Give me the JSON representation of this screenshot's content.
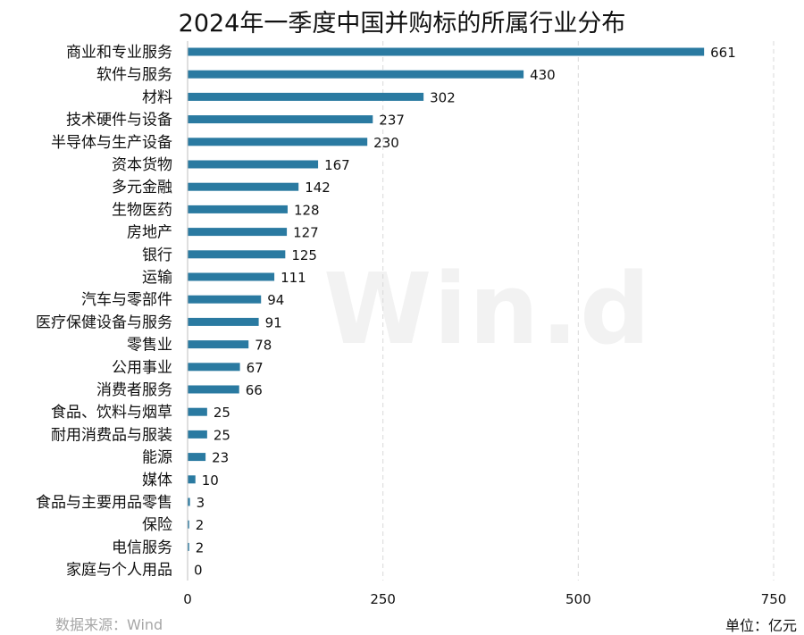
{
  "chart_data": {
    "type": "bar",
    "orientation": "horizontal",
    "title": "2024年一季度中国并购标的所属行业分布",
    "categories": [
      "商业和专业服务",
      "软件与服务",
      "材料",
      "技术硬件与设备",
      "半导体与生产设备",
      "资本货物",
      "多元金融",
      "生物医药",
      "房地产",
      "银行",
      "运输",
      "汽车与零部件",
      "医疗保健设备与服务",
      "零售业",
      "公用事业",
      "消费者服务",
      "食品、饮料与烟草",
      "耐用消费品与服装",
      "能源",
      "媒体",
      "食品与主要用品零售",
      "保险",
      "电信服务",
      "家庭与个人用品"
    ],
    "values": [
      661,
      430,
      302,
      237,
      230,
      167,
      142,
      128,
      127,
      125,
      111,
      94,
      91,
      78,
      67,
      66,
      25,
      25,
      23,
      10,
      3,
      2,
      2,
      0
    ],
    "xlim": [
      0,
      750
    ],
    "xticks": [
      0,
      250,
      500,
      750
    ],
    "xlabel": "",
    "ylabel": "",
    "grid": true,
    "bar_color": "#2a7aa1",
    "source": "数据来源：Wind",
    "unit": "单位：亿元",
    "watermark": "Win.d"
  }
}
